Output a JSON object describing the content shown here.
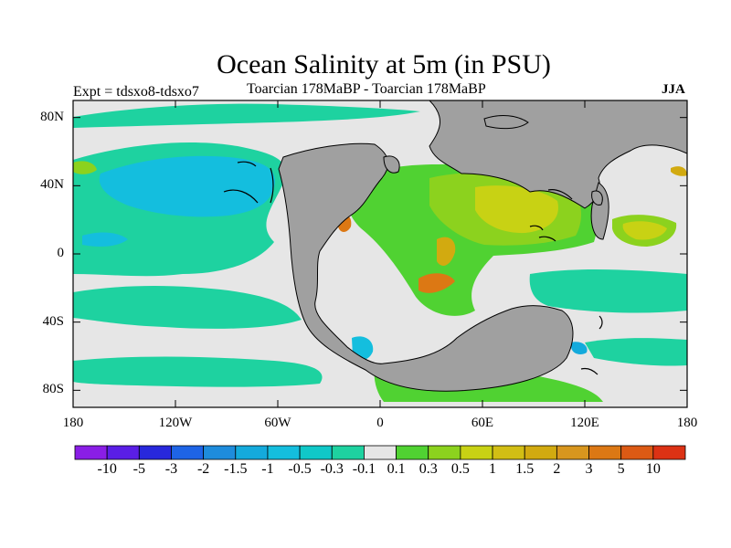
{
  "title": "Ocean Salinity at 5m (in PSU)",
  "experiment_label": "Expt = tdsxo8-tdsxo7",
  "subtitle": "Toarcian 178MaBP - Toarcian 178MaBP",
  "season": "JJA",
  "map": {
    "projection": "cylindrical equidistant",
    "lon_range": [
      -180,
      180
    ],
    "lat_range": [
      -90,
      90
    ],
    "lat_tick_labels": [
      {
        "lat": 80,
        "text": "80N"
      },
      {
        "lat": 40,
        "text": "40N"
      },
      {
        "lat": 0,
        "text": "0"
      },
      {
        "lat": -40,
        "text": "40S"
      },
      {
        "lat": -80,
        "text": "80S"
      }
    ],
    "lon_tick_labels": [
      {
        "lon": -180,
        "text": "180"
      },
      {
        "lon": -120,
        "text": "120W"
      },
      {
        "lon": -60,
        "text": "60W"
      },
      {
        "lon": 0,
        "text": "0"
      },
      {
        "lon": 60,
        "text": "60E"
      },
      {
        "lon": 120,
        "text": "120E"
      },
      {
        "lon": 180,
        "text": "180"
      }
    ],
    "land_color": "#a0a0a0",
    "near_zero_color": "#e6e6e6"
  },
  "colorbar": {
    "colors": [
      "#8a1ee6",
      "#5a1ee6",
      "#2828dc",
      "#1e64e6",
      "#1e8cdc",
      "#14aadc",
      "#14bede",
      "#10c8c8",
      "#1ed2a0",
      "#e6e6e6",
      "#50d232",
      "#8cd21e",
      "#c8d214",
      "#d2be14",
      "#d2aa10",
      "#d8961e",
      "#dc7814",
      "#dc5a14",
      "#dc3214"
    ],
    "labels": [
      "-10",
      "-5",
      "-3",
      "-2",
      "-1.5",
      "-1",
      "-0.5",
      "-0.3",
      "-0.1",
      "0.1",
      "0.3",
      "0.5",
      "1",
      "1.5",
      "2",
      "3",
      "5",
      "10"
    ]
  }
}
